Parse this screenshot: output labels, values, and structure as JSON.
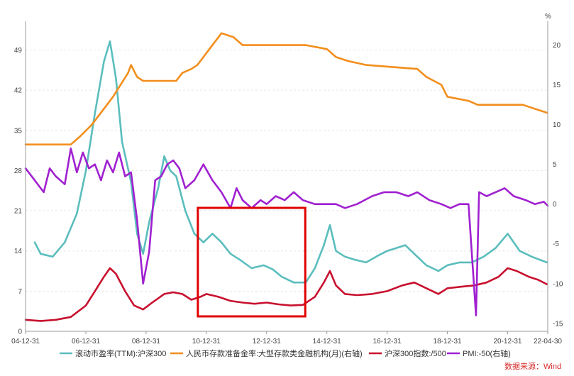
{
  "chart_data": {
    "type": "line",
    "x_ticks": [
      "04-12-31",
      "06-12-31",
      "08-12-31",
      "10-12-31",
      "12-12-31",
      "14-12-31",
      "16-12-31",
      "18-12-31",
      "20-12-31",
      "22-04-30"
    ],
    "left_axis": {
      "ticks": [
        "0",
        "7",
        "14",
        "21",
        "28",
        "35",
        "42",
        "49"
      ],
      "ylim": [
        0,
        54
      ]
    },
    "right_axis": {
      "unit_label": "%",
      "ticks": [
        "-15",
        "-10",
        "-5",
        "0",
        "5",
        "10",
        "15",
        "20"
      ],
      "ylim": [
        -16,
        23
      ]
    },
    "x_range_years": [
      2004.997,
      2022.33
    ],
    "grid": "horizontal",
    "legend_position": "bottom",
    "source_label": "数据来源：Wind",
    "highlight_box": {
      "x_range": [
        "10-12-31",
        "13-12-31"
      ],
      "color": "#e00000"
    },
    "series": [
      {
        "name": "滚动市盈率(TTM):沪深300",
        "axis": "left",
        "color": "#5bbdbd",
        "points": [
          [
            2005.3,
            15.5
          ],
          [
            2005.5,
            13.5
          ],
          [
            2005.9,
            13.0
          ],
          [
            2006.3,
            15.5
          ],
          [
            2006.7,
            20.5
          ],
          [
            2007.0,
            28.0
          ],
          [
            2007.3,
            38.0
          ],
          [
            2007.6,
            47.0
          ],
          [
            2007.8,
            50.5
          ],
          [
            2008.0,
            44.0
          ],
          [
            2008.2,
            33.0
          ],
          [
            2008.5,
            26.0
          ],
          [
            2008.7,
            17.0
          ],
          [
            2008.9,
            13.5
          ],
          [
            2009.1,
            19.0
          ],
          [
            2009.4,
            25.0
          ],
          [
            2009.6,
            30.5
          ],
          [
            2009.8,
            28.0
          ],
          [
            2010.0,
            27.0
          ],
          [
            2010.3,
            21.0
          ],
          [
            2010.6,
            17.0
          ],
          [
            2010.9,
            15.5
          ],
          [
            2011.2,
            17.0
          ],
          [
            2011.5,
            15.5
          ],
          [
            2011.8,
            13.5
          ],
          [
            2012.1,
            12.5
          ],
          [
            2012.5,
            11.0
          ],
          [
            2012.9,
            11.5
          ],
          [
            2013.2,
            10.8
          ],
          [
            2013.5,
            9.5
          ],
          [
            2013.9,
            8.5
          ],
          [
            2014.3,
            8.5
          ],
          [
            2014.6,
            11.0
          ],
          [
            2014.9,
            15.0
          ],
          [
            2015.1,
            18.5
          ],
          [
            2015.3,
            14.0
          ],
          [
            2015.6,
            13.0
          ],
          [
            2015.9,
            12.5
          ],
          [
            2016.3,
            12.0
          ],
          [
            2016.7,
            13.2
          ],
          [
            2017.0,
            14.0
          ],
          [
            2017.3,
            14.5
          ],
          [
            2017.6,
            15.0
          ],
          [
            2017.9,
            13.5
          ],
          [
            2018.3,
            11.5
          ],
          [
            2018.7,
            10.5
          ],
          [
            2019.0,
            11.5
          ],
          [
            2019.4,
            12.0
          ],
          [
            2019.8,
            12.0
          ],
          [
            2020.2,
            13.0
          ],
          [
            2020.6,
            14.5
          ],
          [
            2021.0,
            17.0
          ],
          [
            2021.4,
            14.0
          ],
          [
            2021.8,
            13.0
          ],
          [
            2022.3,
            12.0
          ]
        ]
      },
      {
        "name": "人民币存款准备金率:大型存款类金融机构(月)(右轴)",
        "axis": "right",
        "color": "#f28e1c",
        "points": [
          [
            2005.0,
            7.5
          ],
          [
            2006.5,
            7.5
          ],
          [
            2006.8,
            8.5
          ],
          [
            2007.2,
            10.0
          ],
          [
            2007.6,
            12.0
          ],
          [
            2007.9,
            13.5
          ],
          [
            2008.4,
            16.5
          ],
          [
            2008.5,
            17.5
          ],
          [
            2008.7,
            16.0
          ],
          [
            2008.9,
            15.5
          ],
          [
            2010.0,
            15.5
          ],
          [
            2010.2,
            16.5
          ],
          [
            2010.5,
            17.0
          ],
          [
            2010.7,
            17.5
          ],
          [
            2010.9,
            18.5
          ],
          [
            2011.1,
            19.5
          ],
          [
            2011.4,
            21.0
          ],
          [
            2011.5,
            21.5
          ],
          [
            2011.9,
            21.0
          ],
          [
            2012.2,
            20.0
          ],
          [
            2013.0,
            20.0
          ],
          [
            2014.3,
            20.0
          ],
          [
            2015.0,
            19.5
          ],
          [
            2015.3,
            18.5
          ],
          [
            2015.7,
            18.0
          ],
          [
            2016.3,
            17.5
          ],
          [
            2018.0,
            17.0
          ],
          [
            2018.3,
            16.0
          ],
          [
            2018.8,
            15.0
          ],
          [
            2019.0,
            13.5
          ],
          [
            2019.7,
            13.0
          ],
          [
            2020.0,
            12.5
          ],
          [
            2021.5,
            12.5
          ],
          [
            2021.9,
            12.0
          ],
          [
            2022.3,
            11.5
          ]
        ]
      },
      {
        "name": "沪深300指数:/500",
        "axis": "left",
        "color": "#c8102e",
        "points": [
          [
            2005.0,
            2.0
          ],
          [
            2005.5,
            1.8
          ],
          [
            2006.0,
            2.0
          ],
          [
            2006.5,
            2.5
          ],
          [
            2007.0,
            4.5
          ],
          [
            2007.3,
            7.0
          ],
          [
            2007.6,
            9.5
          ],
          [
            2007.8,
            11.0
          ],
          [
            2008.0,
            10.0
          ],
          [
            2008.3,
            7.0
          ],
          [
            2008.6,
            4.5
          ],
          [
            2008.9,
            3.8
          ],
          [
            2009.2,
            5.0
          ],
          [
            2009.6,
            6.5
          ],
          [
            2009.9,
            6.8
          ],
          [
            2010.2,
            6.5
          ],
          [
            2010.5,
            5.5
          ],
          [
            2010.8,
            6.0
          ],
          [
            2011.0,
            6.5
          ],
          [
            2011.4,
            6.0
          ],
          [
            2011.8,
            5.3
          ],
          [
            2012.2,
            5.0
          ],
          [
            2012.6,
            4.8
          ],
          [
            2013.0,
            5.0
          ],
          [
            2013.4,
            4.7
          ],
          [
            2013.8,
            4.5
          ],
          [
            2014.2,
            4.6
          ],
          [
            2014.6,
            6.0
          ],
          [
            2014.9,
            8.5
          ],
          [
            2015.1,
            10.5
          ],
          [
            2015.3,
            8.0
          ],
          [
            2015.6,
            6.5
          ],
          [
            2016.0,
            6.3
          ],
          [
            2016.5,
            6.5
          ],
          [
            2017.0,
            7.0
          ],
          [
            2017.5,
            8.0
          ],
          [
            2017.9,
            8.5
          ],
          [
            2018.3,
            7.5
          ],
          [
            2018.7,
            6.5
          ],
          [
            2019.0,
            7.5
          ],
          [
            2019.5,
            7.8
          ],
          [
            2019.9,
            8.0
          ],
          [
            2020.3,
            8.5
          ],
          [
            2020.7,
            9.5
          ],
          [
            2021.0,
            11.0
          ],
          [
            2021.3,
            10.5
          ],
          [
            2021.7,
            9.5
          ],
          [
            2022.0,
            9.0
          ],
          [
            2022.3,
            8.2
          ]
        ]
      },
      {
        "name": "PMI:-50(右轴)",
        "axis": "right",
        "color": "#a020d0",
        "points": [
          [
            2005.0,
            4.5
          ],
          [
            2005.3,
            3.0
          ],
          [
            2005.6,
            1.5
          ],
          [
            2005.8,
            4.5
          ],
          [
            2006.0,
            3.5
          ],
          [
            2006.3,
            2.5
          ],
          [
            2006.5,
            7.0
          ],
          [
            2006.7,
            4.0
          ],
          [
            2006.9,
            6.5
          ],
          [
            2007.1,
            4.5
          ],
          [
            2007.3,
            5.0
          ],
          [
            2007.5,
            3.0
          ],
          [
            2007.7,
            5.5
          ],
          [
            2007.9,
            4.0
          ],
          [
            2008.1,
            6.5
          ],
          [
            2008.3,
            3.5
          ],
          [
            2008.5,
            4.0
          ],
          [
            2008.7,
            -2.0
          ],
          [
            2008.9,
            -10.0
          ],
          [
            2009.1,
            -6.0
          ],
          [
            2009.3,
            3.0
          ],
          [
            2009.5,
            3.5
          ],
          [
            2009.7,
            5.0
          ],
          [
            2009.9,
            5.5
          ],
          [
            2010.1,
            4.5
          ],
          [
            2010.3,
            2.0
          ],
          [
            2010.6,
            3.0
          ],
          [
            2010.9,
            5.0
          ],
          [
            2011.2,
            3.0
          ],
          [
            2011.5,
            1.5
          ],
          [
            2011.8,
            -0.5
          ],
          [
            2012.0,
            2.0
          ],
          [
            2012.2,
            0.5
          ],
          [
            2012.5,
            -0.5
          ],
          [
            2012.8,
            0.5
          ],
          [
            2013.0,
            0.0
          ],
          [
            2013.3,
            1.0
          ],
          [
            2013.6,
            0.5
          ],
          [
            2013.9,
            1.5
          ],
          [
            2014.2,
            0.5
          ],
          [
            2014.6,
            0.0
          ],
          [
            2014.9,
            0.0
          ],
          [
            2015.3,
            0.0
          ],
          [
            2015.6,
            -0.5
          ],
          [
            2016.0,
            0.0
          ],
          [
            2016.5,
            1.0
          ],
          [
            2016.9,
            1.5
          ],
          [
            2017.3,
            1.5
          ],
          [
            2017.7,
            1.0
          ],
          [
            2018.0,
            1.5
          ],
          [
            2018.4,
            0.5
          ],
          [
            2018.8,
            0.0
          ],
          [
            2019.1,
            -0.5
          ],
          [
            2019.4,
            0.0
          ],
          [
            2019.7,
            0.0
          ],
          [
            2019.95,
            -14.0
          ],
          [
            2020.05,
            1.5
          ],
          [
            2020.3,
            1.0
          ],
          [
            2020.6,
            1.5
          ],
          [
            2020.9,
            2.0
          ],
          [
            2021.2,
            1.0
          ],
          [
            2021.6,
            0.5
          ],
          [
            2021.9,
            0.0
          ],
          [
            2022.2,
            0.3
          ],
          [
            2022.33,
            -0.2
          ]
        ]
      }
    ]
  }
}
